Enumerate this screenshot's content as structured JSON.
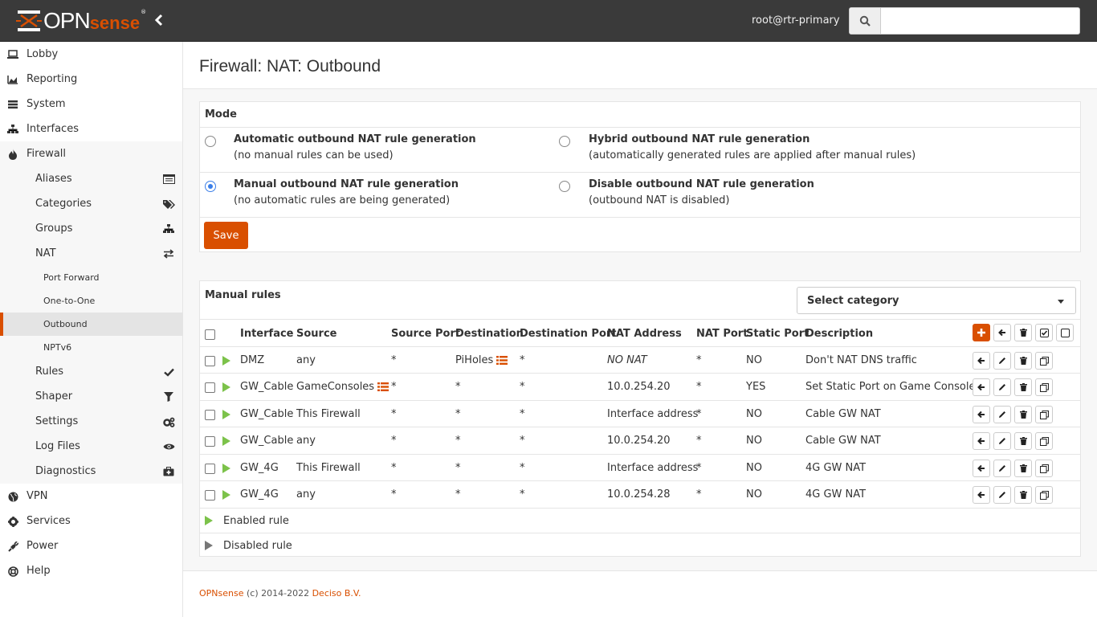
{
  "header": {
    "logo_text": "OPN",
    "logo_text2": "sense",
    "logo_reg": "®",
    "user": "root@rtr-primary",
    "search_placeholder": ""
  },
  "sidebar": {
    "top_items": [
      {
        "label": "Lobby",
        "icon": "laptop-icon"
      },
      {
        "label": "Reporting",
        "icon": "area-chart-icon"
      },
      {
        "label": "System",
        "icon": "server-icon"
      },
      {
        "label": "Interfaces",
        "icon": "sitemap-icon"
      },
      {
        "label": "Firewall",
        "icon": "fire-icon"
      }
    ],
    "firewall_items": [
      {
        "label": "Aliases",
        "icon": "list-alt-icon"
      },
      {
        "label": "Categories",
        "icon": "tags-icon"
      },
      {
        "label": "Groups",
        "icon": "sitemap-icon"
      },
      {
        "label": "NAT",
        "icon": "exchange-icon"
      }
    ],
    "nat_items": [
      {
        "label": "Port Forward"
      },
      {
        "label": "One-to-One"
      },
      {
        "label": "Outbound"
      },
      {
        "label": "NPTv6"
      }
    ],
    "firewall_items2": [
      {
        "label": "Rules",
        "icon": "check-icon"
      },
      {
        "label": "Shaper",
        "icon": "filter-icon"
      },
      {
        "label": "Settings",
        "icon": "cogs-icon"
      },
      {
        "label": "Log Files",
        "icon": "eye-icon"
      },
      {
        "label": "Diagnostics",
        "icon": "medkit-icon"
      }
    ],
    "bottom_items": [
      {
        "label": "VPN",
        "icon": "globe-icon"
      },
      {
        "label": "Services",
        "icon": "cog-icon"
      },
      {
        "label": "Power",
        "icon": "plug-icon"
      },
      {
        "label": "Help",
        "icon": "life-ring-icon"
      }
    ]
  },
  "page": {
    "title": "Firewall: NAT: Outbound"
  },
  "mode": {
    "title": "Mode",
    "options": [
      {
        "title": "Automatic outbound NAT rule generation",
        "sub": "(no manual rules can be used)",
        "checked": false
      },
      {
        "title": "Hybrid outbound NAT rule generation",
        "sub": "(automatically generated rules are applied after manual rules)",
        "checked": false
      },
      {
        "title": "Manual outbound NAT rule generation",
        "sub": "(no automatic rules are being generated)",
        "checked": true
      },
      {
        "title": "Disable outbound NAT rule generation",
        "sub": "(outbound NAT is disabled)",
        "checked": false
      }
    ],
    "save_label": "Save"
  },
  "rules": {
    "title": "Manual rules",
    "category_placeholder": "Select category",
    "columns": [
      "Interface",
      "Source",
      "Source Port",
      "Destination",
      "Destination Port",
      "NAT Address",
      "NAT Port",
      "Static Port",
      "Description"
    ],
    "rows": [
      {
        "interface": "DMZ",
        "source": "any",
        "source_port": "*",
        "destination": "PiHoles",
        "destination_port": "*",
        "nat_address": "NO NAT",
        "nat_port": "*",
        "static_port": "NO",
        "description": "Don't NAT DNS traffic"
      },
      {
        "interface": "GW_Cable",
        "source": "GameConsoles",
        "source_port": "*",
        "destination": "*",
        "destination_port": "*",
        "nat_address": "10.0.254.20",
        "nat_port": "*",
        "static_port": "YES",
        "description": "Set Static Port on Game Consoles"
      },
      {
        "interface": "GW_Cable",
        "source": "This Firewall",
        "source_port": "*",
        "destination": "*",
        "destination_port": "*",
        "nat_address": "Interface address",
        "nat_port": "*",
        "static_port": "NO",
        "description": "Cable GW NAT"
      },
      {
        "interface": "GW_Cable",
        "source": "any",
        "source_port": "*",
        "destination": "*",
        "destination_port": "*",
        "nat_address": "10.0.254.20",
        "nat_port": "*",
        "static_port": "NO",
        "description": "Cable GW NAT"
      },
      {
        "interface": "GW_4G",
        "source": "This Firewall",
        "source_port": "*",
        "destination": "*",
        "destination_port": "*",
        "nat_address": "Interface address",
        "nat_port": "*",
        "static_port": "NO",
        "description": "4G GW NAT"
      },
      {
        "interface": "GW_4G",
        "source": "any",
        "source_port": "*",
        "destination": "*",
        "destination_port": "*",
        "nat_address": "10.0.254.28",
        "nat_port": "*",
        "static_port": "NO",
        "description": "4G GW NAT"
      }
    ],
    "legend_enabled": "Enabled rule",
    "legend_disabled": "Disabled rule"
  },
  "footer": {
    "brand": "OPNsense",
    "copyright": " (c) 2014-2022 ",
    "company": "Deciso B.V."
  },
  "colors": {
    "accent": "#d94f00",
    "enabled": "#7cc24a",
    "sidebar_marker": "#e88b3e",
    "topbar": "#3a3a3a"
  }
}
